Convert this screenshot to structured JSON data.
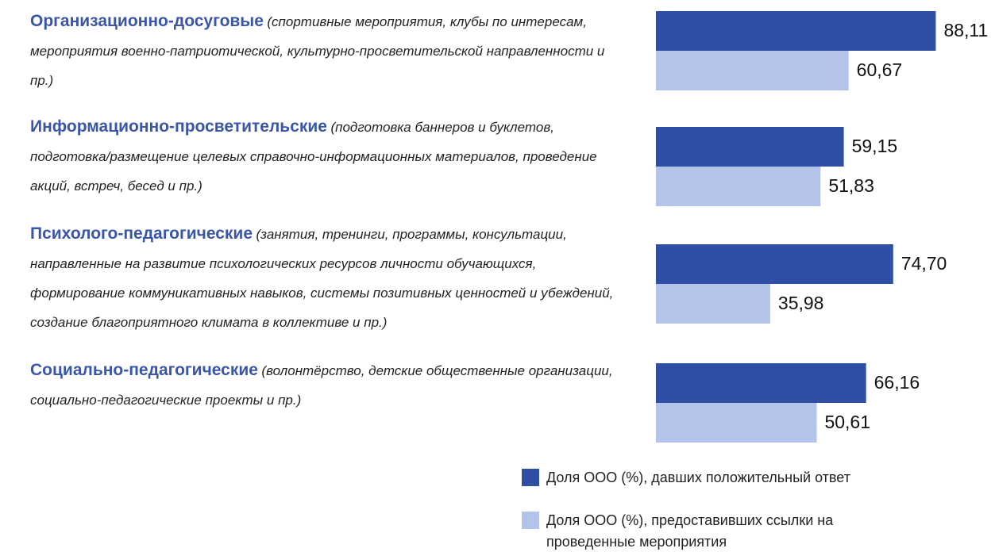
{
  "chart_data": {
    "type": "bar",
    "orientation": "horizontal",
    "categories": [
      "Организационно-досуговые",
      "Информационно-просветительские",
      "Психолого-педагогические",
      "Социально-педагогические"
    ],
    "category_descriptions": [
      "(спортивные мероприятия, клубы по интересам, мероприятия военно-патриотической, культурно-просветительской направленности  и пр.)",
      "(подготовка баннеров и буклетов, подготовка/размещение целевых справочно-информационных материалов, проведение  акций, встреч, бесед  и пр.)",
      "(занятия, тренинги, программы, консультации, направленные на развитие психологических ресурсов личности обучающихся, формирование коммуникативных навыков, системы позитивных ценностей и убеждений, создание благоприятного климата в коллективе и пр.)",
      "(волонтёрство, детские общественные организации, социально-педагогические проекты и пр.)"
    ],
    "series": [
      {
        "name": "Доля ООО (%), давших положительный ответ",
        "color": "#2e4fa3",
        "values": [
          88.11,
          59.15,
          74.7,
          66.16
        ],
        "value_labels": [
          "88,11",
          "59,15",
          "74,70",
          "66,16"
        ]
      },
      {
        "name": "Доля ООО (%), предоставивших ссылки на проведенные мероприятия",
        "color": "#b3c3ea",
        "values": [
          60.67,
          51.83,
          35.98,
          50.61
        ],
        "value_labels": [
          "60,67",
          "51,83",
          "35,98",
          "50,61"
        ]
      }
    ],
    "xlim": [
      0,
      100
    ],
    "legend": "bottom-right"
  }
}
